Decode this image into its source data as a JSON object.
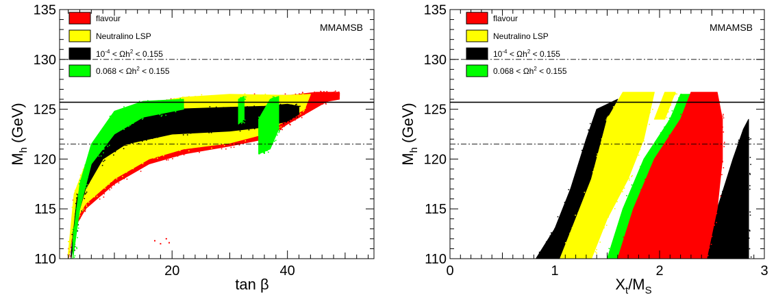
{
  "chart_data": [
    {
      "type": "scatter",
      "model": "MMAMSB",
      "xlabel": "tan β",
      "ylabel": {
        "main": "M",
        "sub": "h",
        "unit": " (GeV)"
      },
      "xlim": [
        0.5,
        55
      ],
      "ylim": [
        110,
        135
      ],
      "x_ticks": [
        20,
        40
      ],
      "y_ticks": [
        110,
        115,
        120,
        125,
        130,
        135
      ],
      "reference_lines": [
        {
          "y": 125.7,
          "style": "solid"
        },
        {
          "y": 130.0,
          "style": "dashdot",
          "x_from": 0.5,
          "x_to": 55
        },
        {
          "y": 121.5,
          "style": "dashdot"
        }
      ],
      "legend": [
        {
          "key": "flavour",
          "label": "flavour",
          "color": "#ff0000"
        },
        {
          "key": "lsp",
          "label": "Neutralino LSP",
          "color": "#ffff00"
        },
        {
          "key": "relic_loose",
          "label_parts": [
            "10",
            "-4",
            " < Ωh",
            "2",
            " < 0.155"
          ],
          "color": "#000000"
        },
        {
          "key": "relic_tight",
          "label_parts": [
            "0.068 < Ωh",
            "2",
            " < 0.155"
          ],
          "color": "#00ff00"
        }
      ],
      "series": [
        {
          "name": "flavour",
          "color": "#ff0000",
          "regions": [
            {
              "lower": [
                [
                  2,
                  110
                ],
                [
                  3,
                  113
                ],
                [
                  5,
                  115
                ],
                [
                  10,
                  117.5
                ],
                [
                  16,
                  119.5
                ],
                [
                  22,
                  120.5
                ],
                [
                  30,
                  121.3
                ],
                [
                  36,
                  122
                ],
                [
                  40,
                  123.5
                ],
                [
                  43,
                  124.5
                ]
              ],
              "upper": [
                [
                  2,
                  110
                ],
                [
                  3,
                  116
                ],
                [
                  5,
                  119
                ],
                [
                  10,
                  123.5
                ],
                [
                  15,
                  125.3
                ],
                [
                  22,
                  126.2
                ],
                [
                  30,
                  126.4
                ],
                [
                  40,
                  126.4
                ],
                [
                  48,
                  126.7
                ],
                [
                  49,
                  126.5
                ]
              ]
            },
            {
              "lower": [
                [
                  42,
                  125
                ],
                [
                  45,
                  125.6
                ],
                [
                  49,
                  126
                ]
              ],
              "upper": [
                [
                  42,
                  126.5
                ],
                [
                  45,
                  126.7
                ],
                [
                  49,
                  126.7
                ]
              ]
            }
          ],
          "points": [
            [
              17,
              111.8
            ],
            [
              18,
              111.5
            ],
            [
              19,
              112
            ],
            [
              19.5,
              111.6
            ]
          ]
        },
        {
          "name": "Neutralino LSP",
          "color": "#ffff00",
          "regions": [
            {
              "lower": [
                [
                  2,
                  110
                ],
                [
                  3,
                  113.5
                ],
                [
                  5,
                  115.5
                ],
                [
                  10,
                  118
                ],
                [
                  16,
                  120
                ],
                [
                  22,
                  121
                ],
                [
                  30,
                  121.6
                ],
                [
                  36,
                  122.5
                ],
                [
                  40,
                  124
                ],
                [
                  43,
                  125
                ]
              ],
              "upper": [
                [
                  2,
                  110.5
                ],
                [
                  3,
                  116.5
                ],
                [
                  5,
                  119.5
                ],
                [
                  10,
                  123.8
                ],
                [
                  15,
                  125.5
                ],
                [
                  22,
                  126.2
                ],
                [
                  30,
                  126.5
                ],
                [
                  40,
                  126.4
                ],
                [
                  44,
                  126.5
                ]
              ]
            }
          ]
        },
        {
          "name": "10^-4 < Ωh^2 < 0.155",
          "color": "#000000",
          "regions": [
            {
              "lower": [
                [
                  2.5,
                  110
                ],
                [
                  3.5,
                  114
                ],
                [
                  5,
                  117
                ],
                [
                  8,
                  120
                ],
                [
                  12,
                  121.5
                ],
                [
                  20,
                  122.5
                ],
                [
                  30,
                  122.8
                ],
                [
                  36,
                  123.2
                ],
                [
                  40,
                  123.8
                ],
                [
                  42,
                  124.5
                ]
              ],
              "upper": [
                [
                  2.5,
                  110.5
                ],
                [
                  3.5,
                  116
                ],
                [
                  5,
                  118.5
                ],
                [
                  8,
                  122
                ],
                [
                  12,
                  123.8
                ],
                [
                  20,
                  125
                ],
                [
                  30,
                  125.2
                ],
                [
                  36,
                  125.3
                ],
                [
                  40,
                  125.5
                ],
                [
                  42,
                  125.3
                ]
              ]
            }
          ]
        },
        {
          "name": "0.068 < Ωh^2 < 0.155",
          "color": "#00ff00",
          "regions": [
            {
              "lower": [
                [
                  2.8,
                  110
                ],
                [
                  4,
                  115
                ],
                [
                  6,
                  119.5
                ],
                [
                  10,
                  122.5
                ],
                [
                  15,
                  124.2
                ],
                [
                  22,
                  125
                ]
              ],
              "upper": [
                [
                  2.8,
                  112
                ],
                [
                  4,
                  117.5
                ],
                [
                  6,
                  121.5
                ],
                [
                  10,
                  124.8
                ],
                [
                  15,
                  125.8
                ],
                [
                  22,
                  126
                ]
              ]
            },
            {
              "lower": [
                [
                  35,
                  120.5
                ],
                [
                  37,
                  121
                ],
                [
                  38.5,
                  123
                ]
              ],
              "upper": [
                [
                  35,
                  124
                ],
                [
                  37,
                  126
                ],
                [
                  38.5,
                  126.3
                ]
              ]
            },
            {
              "lower": [
                [
                  31.5,
                  123.5
                ],
                [
                  32.5,
                  124
                ]
              ],
              "upper": [
                [
                  31.5,
                  126
                ],
                [
                  32.5,
                  126.3
                ]
              ]
            }
          ]
        }
      ]
    },
    {
      "type": "scatter",
      "model": "MMAMSB",
      "xlabel": {
        "main": "X",
        "sub1": "t",
        "mid": "/M",
        "sub2": "S"
      },
      "ylabel": {
        "main": "M",
        "sub": "h",
        "unit": " (GeV)"
      },
      "xlim": [
        0,
        3
      ],
      "ylim": [
        110,
        135
      ],
      "x_ticks": [
        0,
        1,
        2,
        3
      ],
      "y_ticks": [
        110,
        115,
        120,
        125,
        130,
        135
      ],
      "reference_lines": [
        {
          "y": 125.7,
          "style": "solid"
        },
        {
          "y": 130.0,
          "style": "dashdot"
        },
        {
          "y": 121.5,
          "style": "dashdot"
        }
      ],
      "legend": [
        {
          "key": "flavour",
          "label": "flavour",
          "color": "#ff0000"
        },
        {
          "key": "lsp",
          "label": "Neutralino LSP",
          "color": "#ffff00"
        },
        {
          "key": "relic_loose",
          "label_parts": [
            "10",
            "-4",
            " < Ωh",
            "2",
            " < 0.155"
          ],
          "color": "#000000"
        },
        {
          "key": "relic_tight",
          "label_parts": [
            "0.068 < Ωh",
            "2",
            " < 0.155"
          ],
          "color": "#00ff00"
        }
      ],
      "series": [
        {
          "name": "10^-4 < Ωh^2 < 0.155",
          "color": "#000000",
          "regions": [
            {
              "lower": [
                [
                  0.82,
                  110
                ],
                [
                  1.0,
                  113
                ],
                [
                  1.15,
                  117
                ],
                [
                  1.3,
                  122
                ],
                [
                  1.4,
                  125
                ]
              ],
              "upper": [
                [
                  1.05,
                  110
                ],
                [
                  1.2,
                  114
                ],
                [
                  1.35,
                  118
                ],
                [
                  1.5,
                  124
                ],
                [
                  1.6,
                  126
                ]
              ]
            },
            {
              "lower": [
                [
                  2.4,
                  110
                ],
                [
                  2.55,
                  115
                ],
                [
                  2.7,
                  120
                ],
                [
                  2.8,
                  123
                ]
              ],
              "upper": [
                [
                  2.85,
                  110
                ],
                [
                  2.85,
                  115
                ],
                [
                  2.85,
                  120
                ],
                [
                  2.85,
                  124
                ]
              ]
            }
          ]
        },
        {
          "name": "Neutralino LSP",
          "color": "#ffff00",
          "regions": [
            {
              "lower": [
                [
                  1.05,
                  110
                ],
                [
                  1.2,
                  114
                ],
                [
                  1.35,
                  118
                ],
                [
                  1.5,
                  124
                ],
                [
                  1.65,
                  126.7
                ]
              ],
              "upper": [
                [
                  1.35,
                  110
                ],
                [
                  1.5,
                  114
                ],
                [
                  1.7,
                  118
                ],
                [
                  1.85,
                  122
                ],
                [
                  1.95,
                  126.7
                ]
              ]
            },
            {
              "lower": [
                [
                  1.95,
                  124
                ],
                [
                  2.05,
                  126.7
                ]
              ],
              "upper": [
                [
                  2.05,
                  124
                ],
                [
                  2.15,
                  126.7
                ]
              ]
            }
          ]
        },
        {
          "name": "0.068 < Ωh^2 < 0.155",
          "color": "#00ff00",
          "regions": [
            {
              "lower": [
                [
                  1.5,
                  110
                ],
                [
                  1.65,
                  115
                ],
                [
                  1.85,
                  120
                ],
                [
                  2.1,
                  124
                ],
                [
                  2.2,
                  126.5
                ]
              ],
              "upper": [
                [
                  1.6,
                  110
                ],
                [
                  1.75,
                  115
                ],
                [
                  1.95,
                  120
                ],
                [
                  2.2,
                  124
                ],
                [
                  2.3,
                  126.5
                ]
              ]
            }
          ]
        },
        {
          "name": "flavour",
          "color": "#ff0000",
          "regions": [
            {
              "lower": [
                [
                  1.6,
                  110
                ],
                [
                  1.75,
                  115
                ],
                [
                  1.95,
                  120
                ],
                [
                  2.2,
                  124
                ],
                [
                  2.3,
                  126.7
                ]
              ],
              "upper": [
                [
                  2.45,
                  110
                ],
                [
                  2.55,
                  115
                ],
                [
                  2.6,
                  120
                ],
                [
                  2.6,
                  124
                ],
                [
                  2.55,
                  126.7
                ]
              ]
            }
          ]
        }
      ]
    }
  ]
}
